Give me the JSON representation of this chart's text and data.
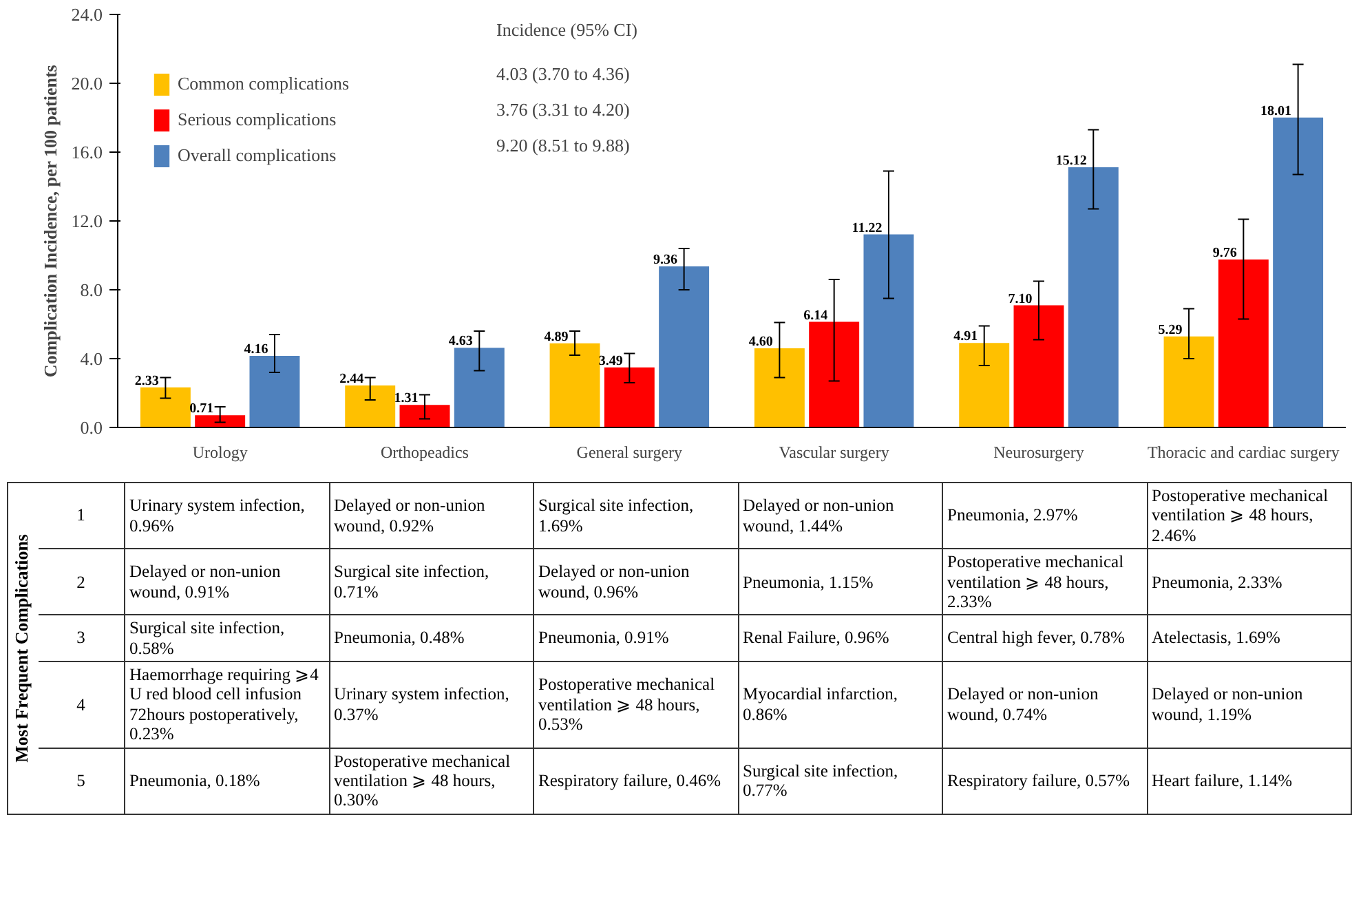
{
  "chart_data": {
    "type": "bar",
    "ylabel": "Complication Incidence, per 100 patients",
    "categories": [
      "Urology",
      "Orthopeadics",
      "General surgery",
      "Vascular surgery",
      "Neurosurgery",
      "Thoracic and cardiac surgery"
    ],
    "series": [
      {
        "name": "Common complications",
        "color": "#ffc000",
        "values": [
          2.33,
          2.44,
          4.89,
          4.6,
          4.91,
          5.29
        ],
        "value_labels": [
          "2.33",
          "2.44",
          "4.89",
          "4.60",
          "4.91",
          "5.29"
        ],
        "errors": [
          [
            1.7,
            2.9
          ],
          [
            1.6,
            2.9
          ],
          [
            4.2,
            5.6
          ],
          [
            2.9,
            6.1
          ],
          [
            3.6,
            5.9
          ],
          [
            4.0,
            6.9
          ]
        ]
      },
      {
        "name": "Serious complications",
        "color": "#ff0000",
        "values": [
          0.71,
          1.31,
          3.49,
          6.14,
          7.1,
          9.76
        ],
        "value_labels": [
          "0.71",
          "1.31",
          "3.49",
          "6.14",
          "7.10",
          "9.76"
        ],
        "errors": [
          [
            0.3,
            1.2
          ],
          [
            0.5,
            1.9
          ],
          [
            2.6,
            4.3
          ],
          [
            2.7,
            8.6
          ],
          [
            5.1,
            8.5
          ],
          [
            6.3,
            12.1
          ]
        ]
      },
      {
        "name": "Overall complications",
        "color": "#4f81bd",
        "values": [
          4.16,
          4.63,
          9.36,
          11.22,
          15.12,
          18.01
        ],
        "value_labels": [
          "4.16",
          "4.63",
          "9.36",
          "11.22",
          "15.12",
          "18.01"
        ],
        "errors": [
          [
            3.2,
            5.4
          ],
          [
            3.3,
            5.6
          ],
          [
            8.0,
            10.4
          ],
          [
            7.5,
            14.9
          ],
          [
            12.7,
            17.3
          ],
          [
            14.7,
            21.1
          ]
        ]
      }
    ],
    "ylim": [
      0,
      24
    ],
    "yticks": [
      {
        "value": 0,
        "label": "0.0"
      },
      {
        "value": 4,
        "label": "4.0"
      },
      {
        "value": 8,
        "label": "8.0"
      },
      {
        "value": 12,
        "label": "12.0"
      },
      {
        "value": 16,
        "label": "16.0"
      },
      {
        "value": 20,
        "label": "20.0"
      },
      {
        "value": 24,
        "label": "24.0"
      }
    ],
    "legend": "top left",
    "grid": false,
    "annotations": [
      "Incidence (95% CI)",
      "4.03 (3.70 to 4.36)",
      "3.76 (3.31 to 4.20)",
      "9.20 (8.51 to 9.88)",
      "Most Frequent Complications",
      "1",
      "Urinary system infection, 0.96%",
      "Delayed or non-union wound, 0.92%",
      "Surgical site infection, 1.69%",
      "Delayed or non-union wound, 1.44%",
      "Pneumonia, 2.97%",
      "Postoperative mechanical ventilation ⩾ 48 hours, 2.46%",
      "2",
      "Delayed or non-union wound, 0.91%",
      "Surgical site infection, 0.71%",
      "Delayed or non-union wound, 0.96%",
      "Pneumonia, 1.15%",
      "Postoperative mechanical ventilation ⩾ 48 hours, 2.33%",
      "Pneumonia, 2.33%",
      "3",
      "Surgical site infection, 0.58%",
      "Pneumonia, 0.48%",
      "Pneumonia, 0.91%",
      "Renal Failure, 0.96%",
      "Central high fever, 0.78%",
      "Atelectasis, 1.69%",
      "4",
      "Haemorrhage requiring ⩾4 U red blood cell infusion 72hours postoperatively, 0.23%",
      "Urinary system infection, 0.37%",
      "Postoperative mechanical ventilation ⩾ 48 hours, 0.53%",
      "Myocardial infarction, 0.86%",
      "Delayed or non-union wound, 0.74%",
      "Delayed or non-union wound, 1.19%",
      "5",
      "Pneumonia, 0.18%",
      "Postoperative mechanical ventilation ⩾ 48 hours, 0.30%",
      "Respiratory failure, 0.46%",
      "Surgical site infection, 0.77%",
      "Respiratory failure, 0.57%",
      "Heart failure, 1.14%"
    ]
  }
}
